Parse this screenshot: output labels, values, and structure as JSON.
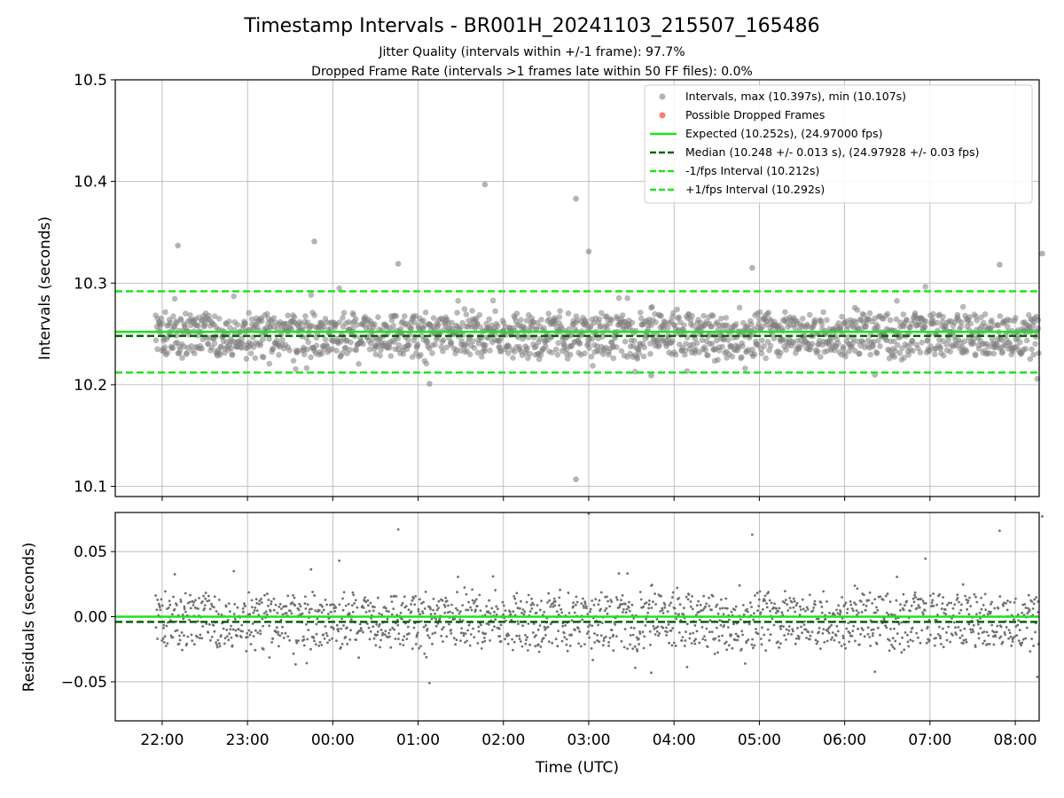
{
  "figure": {
    "title": "Timestamp Intervals - BR001H_20241103_215507_165486",
    "subtitle_1": "Jitter Quality (intervals within +/-1 frame): 97.7%",
    "subtitle_2": "Dropped Frame Rate (intervals >1 frames late within 50 FF files): 0.0%"
  },
  "chart_data": [
    {
      "type": "scatter",
      "panel": "top",
      "ylabel": "Intervals (seconds)",
      "xlabel": "",
      "ylim": [
        10.09,
        10.5
      ],
      "yticks": [
        10.1,
        10.2,
        10.3,
        10.4,
        10.5
      ],
      "ytick_labels": [
        "10.1",
        "10.2",
        "10.3",
        "10.4",
        "10.5"
      ],
      "xlim_hours_utc": [
        21.45,
        32.28
      ],
      "x_tick_hours": [
        22,
        23,
        24,
        25,
        26,
        27,
        28,
        29,
        30,
        31,
        32
      ],
      "grid": true,
      "legend_position": "top-right",
      "lines": [
        {
          "name": "Expected (10.252s), (24.97000 fps)",
          "y": 10.252,
          "color": "#22e022",
          "style": "solid"
        },
        {
          "name": "Median (10.248 +/- 0.013 s), (24.97928 +/- 0.03 fps)",
          "y": 10.248,
          "color": "#006400",
          "style": "dashed"
        },
        {
          "name": "-1/fps Interval (10.212s)",
          "y": 10.212,
          "color": "#22e022",
          "style": "dashed"
        },
        {
          "name": "+1/fps Interval (10.292s)",
          "y": 10.292,
          "color": "#22e022",
          "style": "dashed"
        }
      ],
      "series": [
        {
          "name": "Intervals, max (10.397s), min (10.107s)",
          "color": "#808080",
          "marker": "circle"
        },
        {
          "name": "Possible Dropped Frames",
          "color": "#ff6060",
          "marker": "circle"
        }
      ],
      "outliers": [
        {
          "x": "22:11",
          "y": 10.337
        },
        {
          "x": "23:47",
          "y": 10.341
        },
        {
          "x": "01:47",
          "y": 10.397
        },
        {
          "x": "02:51",
          "y": 10.383
        },
        {
          "x": "02:51",
          "y": 10.107
        },
        {
          "x": "00:46",
          "y": 10.319
        },
        {
          "x": "03:00",
          "y": 10.331
        },
        {
          "x": "04:55",
          "y": 10.315
        },
        {
          "x": "07:49",
          "y": 10.318
        },
        {
          "x": "08:19",
          "y": 10.329
        },
        {
          "x": "01:08",
          "y": 10.201
        },
        {
          "x": "03:44",
          "y": 10.209
        }
      ]
    },
    {
      "type": "scatter",
      "panel": "bottom",
      "ylabel": "Residuals (seconds)",
      "xlabel": "Time (UTC)",
      "ylim": [
        -0.08,
        0.08
      ],
      "yticks": [
        -0.05,
        0.0,
        0.05
      ],
      "ytick_labels": [
        "−0.05",
        "0.00",
        "0.05"
      ],
      "xlim_hours_utc": [
        21.45,
        32.28
      ],
      "x_tick_hours": [
        22,
        23,
        24,
        25,
        26,
        27,
        28,
        29,
        30,
        31,
        32
      ],
      "x_tick_labels": [
        "22:00",
        "23:00",
        "00:00",
        "01:00",
        "02:00",
        "03:00",
        "04:00",
        "05:00",
        "06:00",
        "07:00",
        "08:00"
      ],
      "grid": true,
      "lines": [
        {
          "y": 0.0,
          "color": "#22e022",
          "style": "solid"
        },
        {
          "y": -0.004,
          "color": "#006400",
          "style": "dashed"
        }
      ],
      "series": [
        {
          "name": "Residuals",
          "color": "#707070",
          "marker": "point"
        }
      ]
    }
  ]
}
